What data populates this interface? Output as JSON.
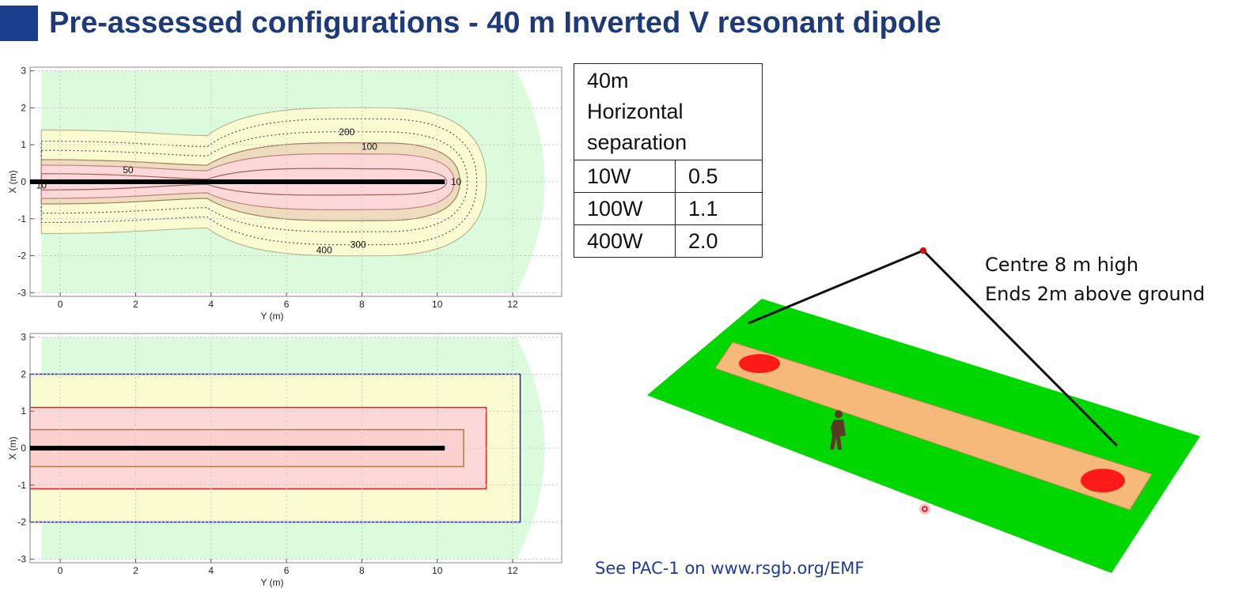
{
  "page": {
    "title": "Pre-assessed configurations - 40 m Inverted V resonant dipole",
    "link": "See PAC-1 on www.rsgb.org/EMF",
    "accent": "#1b3f8c"
  },
  "table": {
    "head_lines": [
      "40m",
      "Horizontal",
      "separation"
    ],
    "rows": [
      {
        "power": "10W",
        "distance": "0.5"
      },
      {
        "power": "100W",
        "distance": "1.1"
      },
      {
        "power": "400W",
        "distance": "2.0"
      }
    ]
  },
  "illustration": {
    "lines": [
      "Centre 8 m high",
      "Ends 2m above ground"
    ],
    "ground_color": "#00d600",
    "zone_color": "#f7b97a",
    "hotspot_color": "#ff1a1a"
  },
  "chart_data": [
    {
      "type": "contour",
      "xlabel": "Y (m)",
      "ylabel": "X (m)",
      "xlim": [
        -0.8,
        13.3
      ],
      "ylim": [
        -3.1,
        3.1
      ],
      "xticks": [
        0,
        2,
        4,
        6,
        8,
        10,
        12
      ],
      "yticks": [
        3,
        2,
        1,
        0,
        -1,
        -2,
        -3
      ],
      "grid": true,
      "antenna": {
        "y_start": -0.8,
        "y_end": 10.2,
        "x": 0
      },
      "contour_labels": [
        {
          "label": "10",
          "y": -0.5,
          "x": -0.1
        },
        {
          "label": "50",
          "y": 1.8,
          "x": 0.32
        },
        {
          "label": "200",
          "y": 7.6,
          "x": 1.35
        },
        {
          "label": "100",
          "y": 8.2,
          "x": 0.95
        },
        {
          "label": "10",
          "y": 10.5,
          "x": 0
        },
        {
          "label": "300",
          "y": 7.9,
          "x": -1.7
        },
        {
          "label": "400",
          "y": 7.0,
          "x": -1.85
        }
      ],
      "zone_colors": {
        "outer": "#dcfadc",
        "mid": "#fbfbd2",
        "inner": "#fcd8d8",
        "band": "#efdcbf"
      }
    },
    {
      "type": "zones",
      "xlabel": "Y (m)",
      "ylabel": "X (m)",
      "xlim": [
        -0.8,
        13.3
      ],
      "ylim": [
        -3.1,
        3.1
      ],
      "xticks": [
        0,
        2,
        4,
        6,
        8,
        10,
        12
      ],
      "yticks": [
        3,
        2,
        1,
        0,
        -1,
        -2,
        -3
      ],
      "grid": true,
      "antenna": {
        "y_start": -0.8,
        "y_end": 10.2,
        "x": 0
      },
      "rectangles": [
        {
          "power": "400W",
          "y_min": -0.8,
          "y_max": 12.2,
          "x_min": -2.0,
          "x_max": 2.0,
          "color": "#2222cc"
        },
        {
          "power": "100W",
          "y_min": -0.8,
          "y_max": 11.3,
          "x_min": -1.1,
          "x_max": 1.1,
          "color": "#e02020"
        },
        {
          "power": "10W",
          "y_min": -0.8,
          "y_max": 10.7,
          "x_min": -0.5,
          "x_max": 0.5,
          "color": "#b07a4a"
        }
      ]
    }
  ]
}
